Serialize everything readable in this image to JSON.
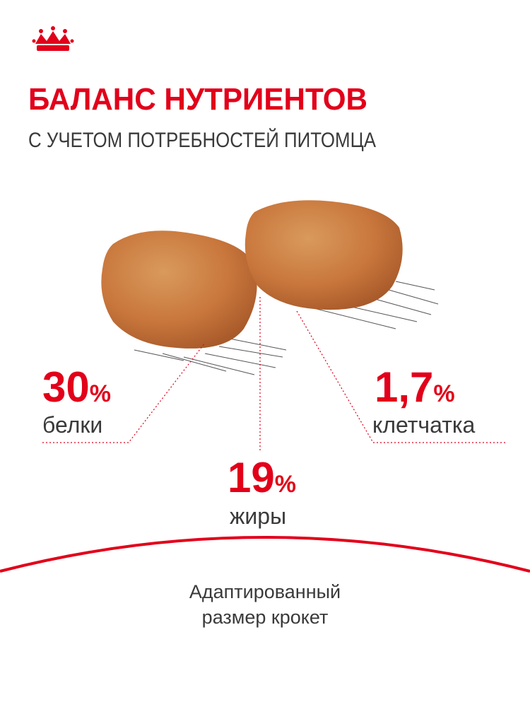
{
  "header": {
    "title": "БАЛАНС НУТРИЕНТОВ",
    "subtitle": "С УЧЕТОМ ПОТРЕБНОСТЕЙ ПИТОМЦА"
  },
  "nutrients": [
    {
      "value": "30",
      "unit": "%",
      "label": "белки"
    },
    {
      "value": "19",
      "unit": "%",
      "label": "жиры"
    },
    {
      "value": "1,7",
      "unit": "%",
      "label": "клетчатка"
    }
  ],
  "footer": {
    "lines": [
      "Адаптированный",
      "размер крокет"
    ]
  }
}
